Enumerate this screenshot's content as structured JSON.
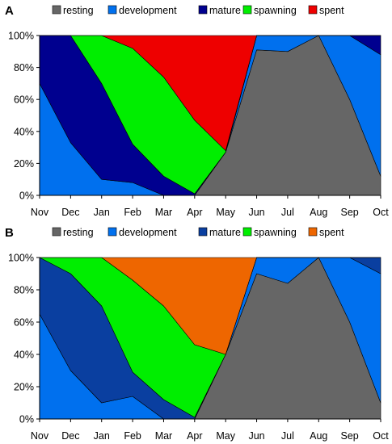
{
  "chart_data": [
    {
      "type": "area",
      "stacked": true,
      "title": "A",
      "x": [
        "Nov",
        "Dec",
        "Jan",
        "Feb",
        "Mar",
        "Apr",
        "May",
        "Jun",
        "Jul",
        "Aug",
        "Sep",
        "Oct"
      ],
      "yticks": [
        "0%",
        "20%",
        "40%",
        "60%",
        "80%",
        "100%"
      ],
      "ylim": [
        0,
        100
      ],
      "legend_position": "top",
      "series": [
        {
          "name": "resting",
          "color": "#666666",
          "values": [
            0,
            0,
            0,
            0,
            0,
            0,
            27,
            91,
            90,
            100,
            60,
            12
          ]
        },
        {
          "name": "development",
          "color": "#0070ee",
          "values": [
            70,
            33,
            10,
            8,
            0,
            0,
            0,
            9,
            10,
            0,
            40,
            76
          ]
        },
        {
          "name": "mature",
          "color": "#00008f",
          "values": [
            30,
            67,
            60,
            24,
            12,
            1,
            0,
            0,
            0,
            0,
            0,
            12
          ]
        },
        {
          "name": "spawning",
          "color": "#00ee00",
          "values": [
            0,
            0,
            30,
            60,
            62,
            46,
            1,
            0,
            0,
            0,
            0,
            0
          ]
        },
        {
          "name": "spent",
          "color": "#ee0000",
          "values": [
            0,
            0,
            0,
            8,
            26,
            53,
            72,
            0,
            0,
            0,
            0,
            0
          ]
        }
      ]
    },
    {
      "type": "area",
      "stacked": true,
      "title": "B",
      "x": [
        "Nov",
        "Dec",
        "Jan",
        "Feb",
        "Mar",
        "Apr",
        "May",
        "Jun",
        "Jul",
        "Aug",
        "Sep",
        "Oct"
      ],
      "yticks": [
        "0%",
        "20%",
        "40%",
        "60%",
        "80%",
        "100%"
      ],
      "ylim": [
        0,
        100
      ],
      "legend_position": "top",
      "series": [
        {
          "name": "resting",
          "color": "#666666",
          "values": [
            0,
            0,
            0,
            0,
            0,
            0,
            40,
            90,
            84,
            100,
            60,
            10
          ]
        },
        {
          "name": "development",
          "color": "#0070ee",
          "values": [
            65,
            30,
            10,
            14,
            0,
            0,
            0,
            10,
            16,
            0,
            40,
            80
          ]
        },
        {
          "name": "mature",
          "color": "#0a3fa0",
          "values": [
            35,
            60,
            60,
            15,
            12,
            1,
            0,
            0,
            0,
            0,
            0,
            10
          ]
        },
        {
          "name": "spawning",
          "color": "#00ee00",
          "values": [
            0,
            10,
            30,
            57,
            58,
            45,
            0,
            0,
            0,
            0,
            0,
            0
          ]
        },
        {
          "name": "spent",
          "color": "#ee6600",
          "values": [
            0,
            0,
            0,
            14,
            30,
            54,
            60,
            0,
            0,
            0,
            0,
            0
          ]
        }
      ]
    }
  ]
}
